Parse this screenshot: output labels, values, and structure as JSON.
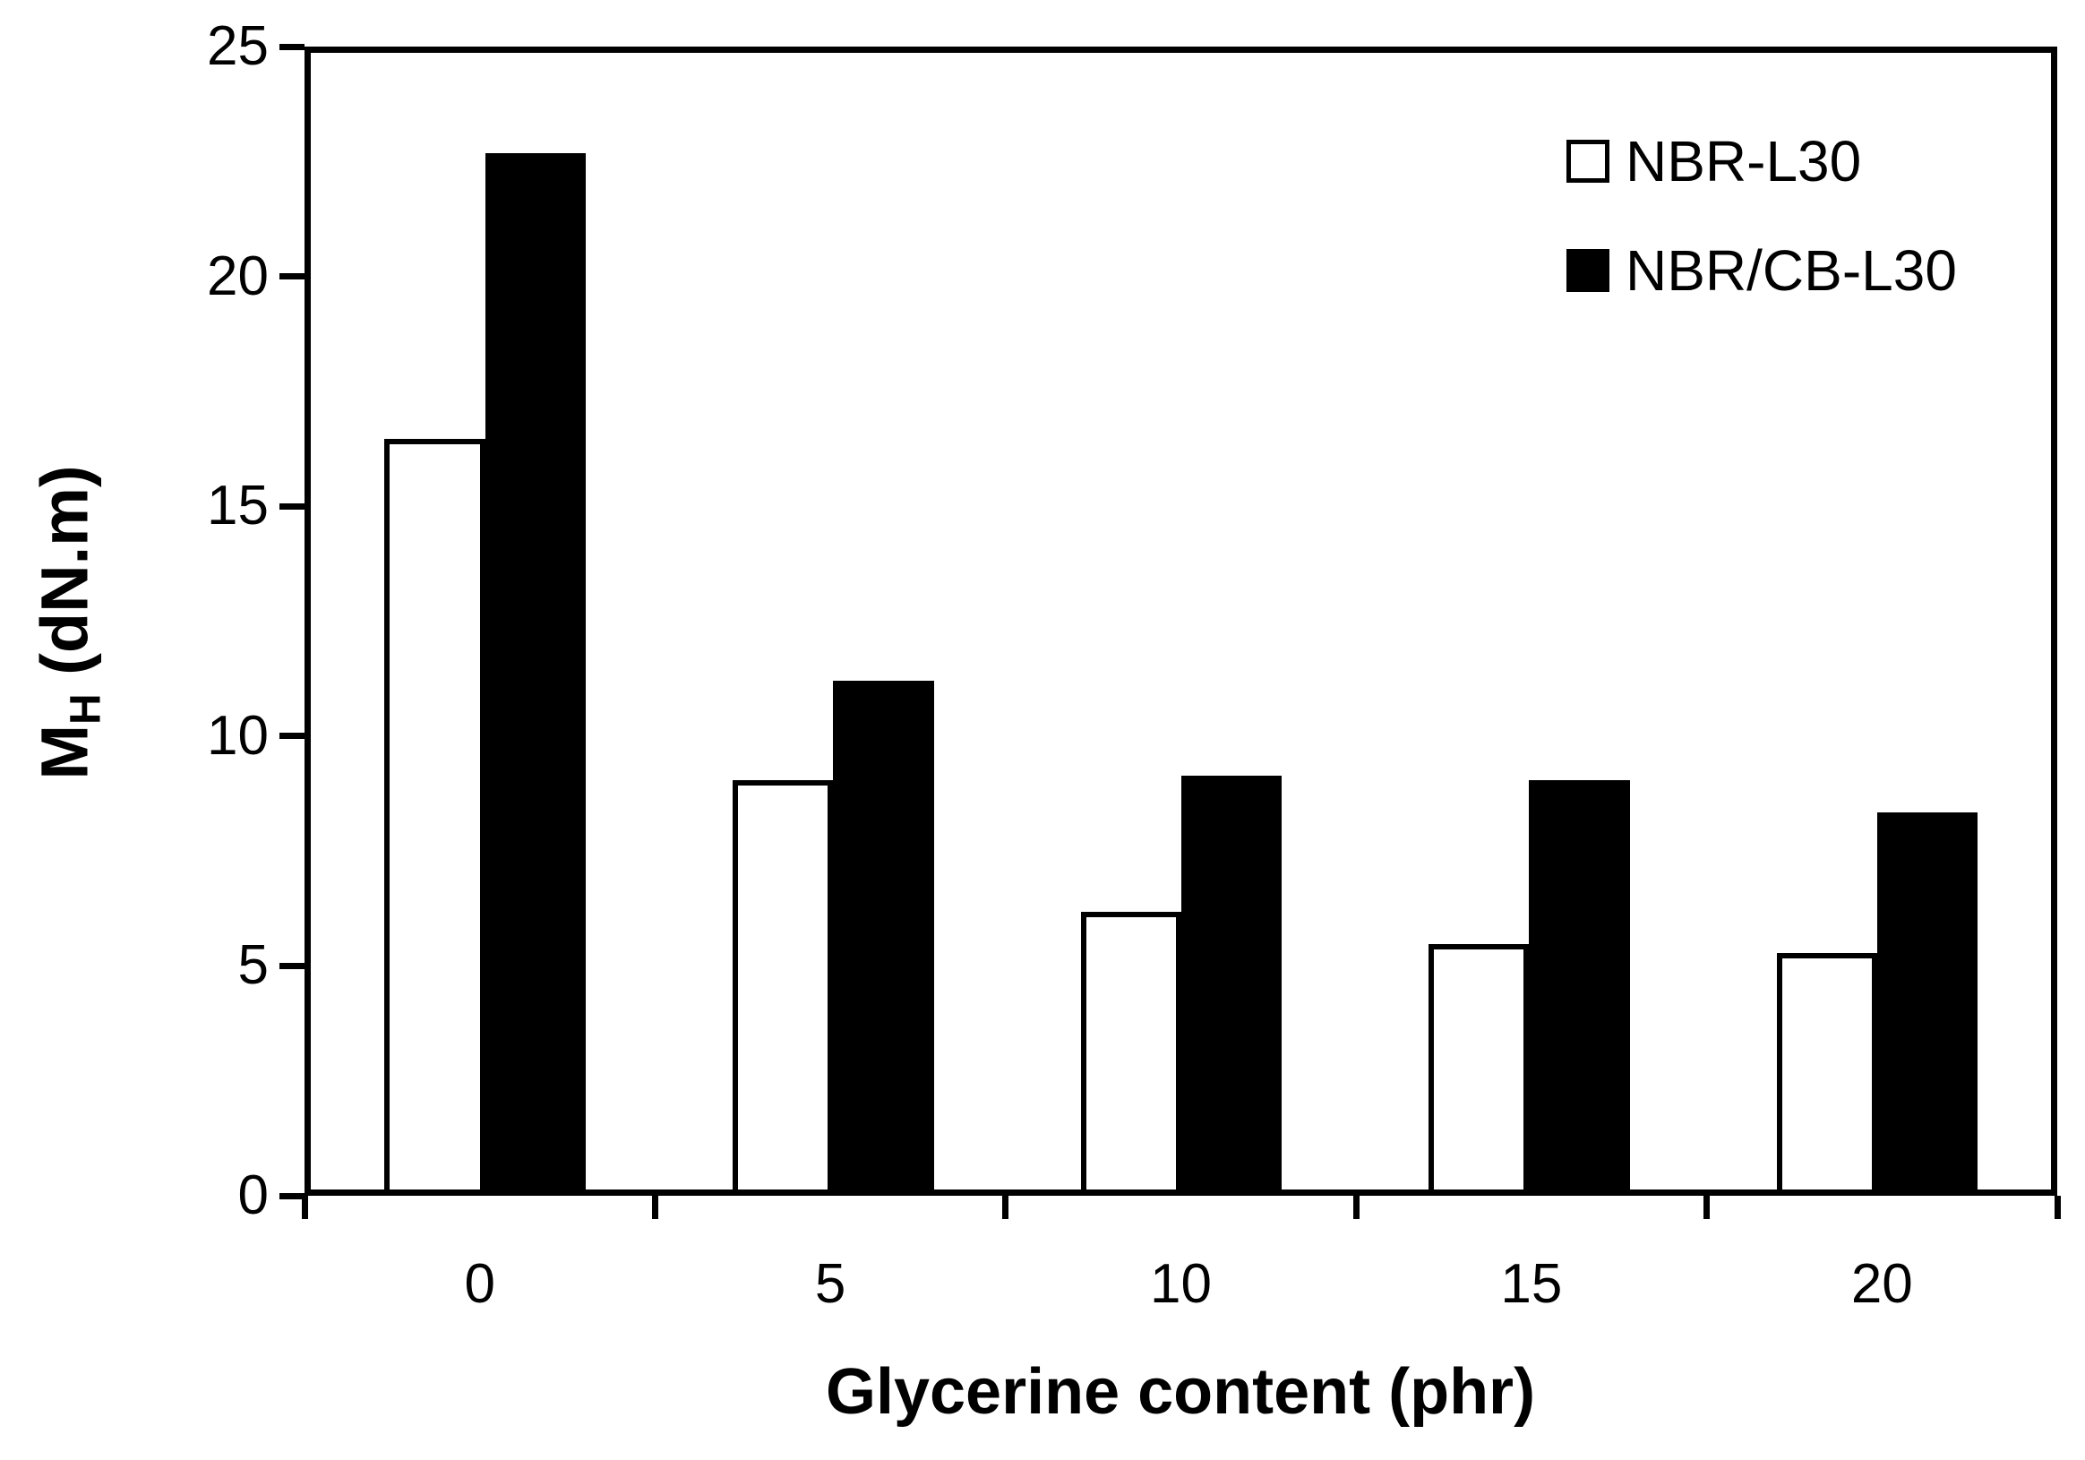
{
  "chart_data": {
    "type": "bar",
    "title": "",
    "categories": [
      "0",
      "5",
      "10",
      "15",
      "20"
    ],
    "series": [
      {
        "name": "NBR-L30",
        "style": "open",
        "fill": "#ffffff",
        "border": "#000000",
        "values": [
          16.5,
          9.0,
          6.1,
          5.4,
          5.2
        ]
      },
      {
        "name": "NBR/CB-L30",
        "style": "filled",
        "fill": "#000000",
        "border": "#000000",
        "values": [
          22.8,
          11.2,
          9.1,
          9.0,
          8.3
        ]
      }
    ],
    "xlabel": "Glycerine content (phr)",
    "ylabel": {
      "main": "M",
      "subscript": "H",
      "rest": " (dN.m)"
    },
    "ylim": [
      0,
      25
    ],
    "yticks": [
      0,
      5,
      10,
      15,
      20,
      25
    ],
    "legend_position": "top-right",
    "grid": false,
    "colors": {
      "foreground": "#000000",
      "background": "#ffffff"
    }
  }
}
